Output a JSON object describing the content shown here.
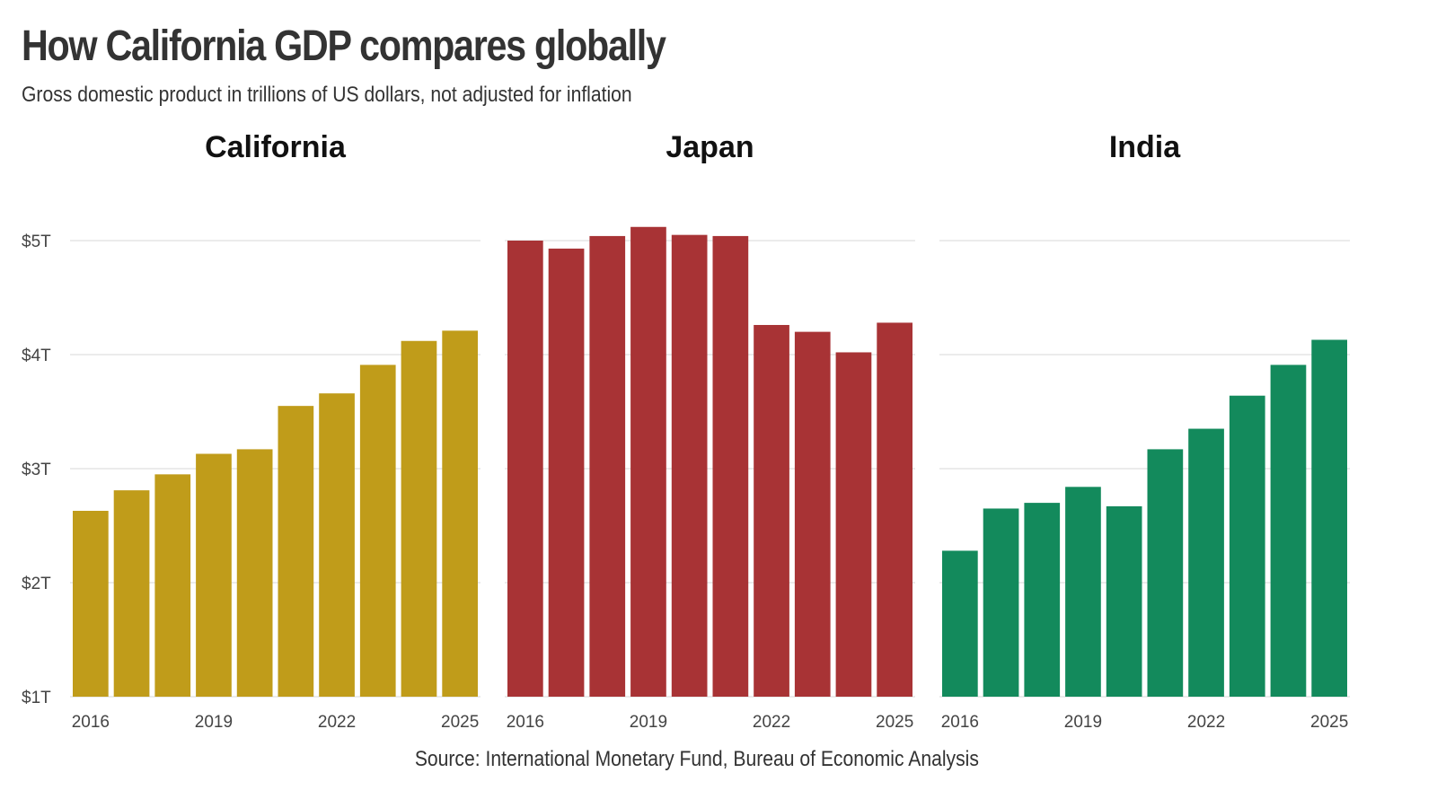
{
  "title": "How California GDP compares globally",
  "subtitle": "Gross domestic product in trillions of US dollars, not adjusted for inflation",
  "source": "Source: International Monetary Fund, Bureau of Economic Analysis",
  "chart_data": [
    {
      "type": "bar",
      "title": "California",
      "color": "#C09C1A",
      "categories": [
        2016,
        2017,
        2018,
        2019,
        2020,
        2021,
        2022,
        2023,
        2024,
        2025
      ],
      "x_tick_labels": [
        "2016",
        "2019",
        "2022",
        "2025"
      ],
      "y_tick_labels": [
        "$1T",
        "$2T",
        "$3T",
        "$4T",
        "$5T"
      ],
      "ylim": [
        1,
        5
      ],
      "grid": true,
      "values": [
        2.63,
        2.81,
        2.95,
        3.13,
        3.17,
        3.55,
        3.66,
        3.91,
        4.12,
        4.21
      ]
    },
    {
      "type": "bar",
      "title": "Japan",
      "color": "#A83335",
      "categories": [
        2016,
        2017,
        2018,
        2019,
        2020,
        2021,
        2022,
        2023,
        2024,
        2025
      ],
      "x_tick_labels": [
        "2016",
        "2019",
        "2022",
        "2025"
      ],
      "ylim": [
        1,
        5
      ],
      "grid": true,
      "values": [
        5.0,
        4.93,
        5.04,
        5.12,
        5.05,
        5.04,
        4.26,
        4.2,
        4.02,
        4.28
      ]
    },
    {
      "type": "bar",
      "title": "India",
      "color": "#138A5C",
      "categories": [
        2016,
        2017,
        2018,
        2019,
        2020,
        2021,
        2022,
        2023,
        2024,
        2025
      ],
      "x_tick_labels": [
        "2016",
        "2019",
        "2022",
        "2025"
      ],
      "ylim": [
        1,
        5
      ],
      "grid": true,
      "values": [
        2.28,
        2.65,
        2.7,
        2.84,
        2.67,
        3.17,
        3.35,
        3.64,
        3.91,
        4.13
      ]
    }
  ]
}
